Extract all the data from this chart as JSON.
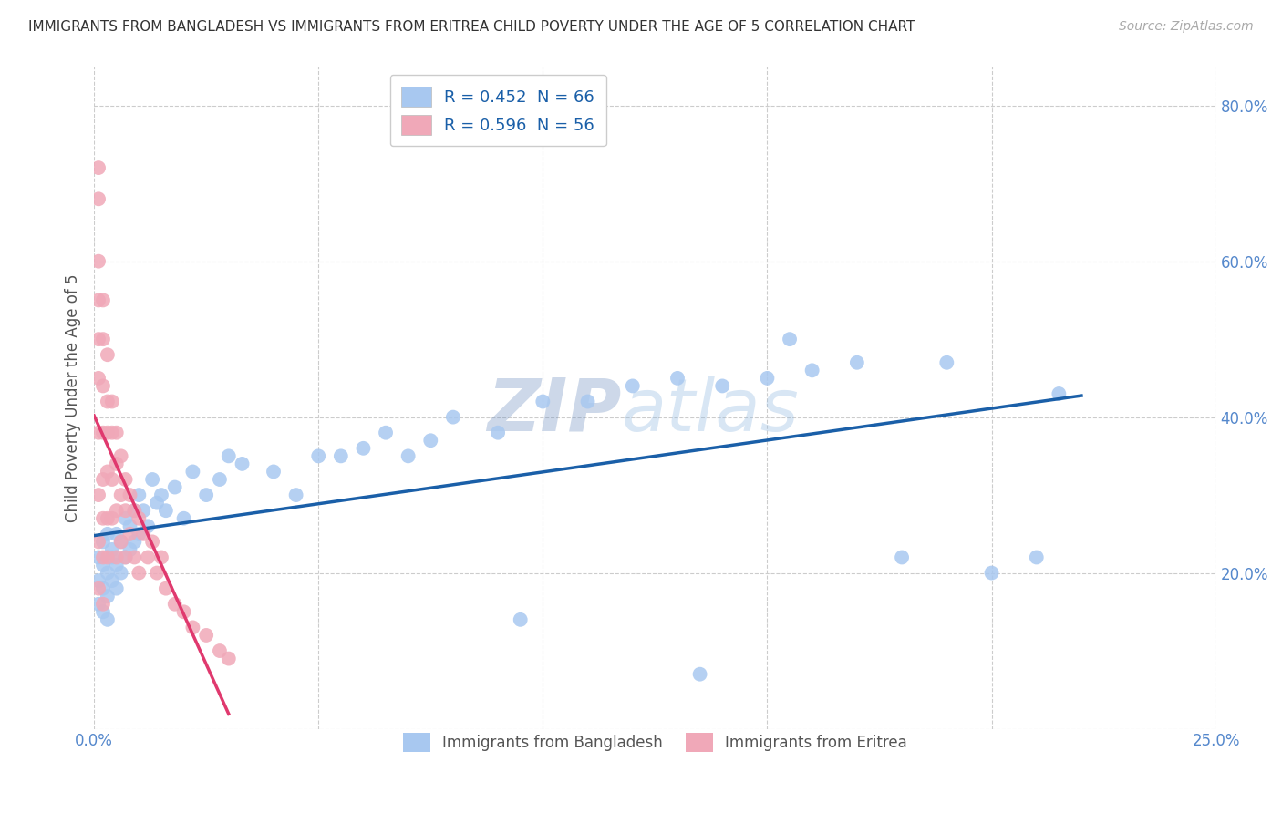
{
  "title": "IMMIGRANTS FROM BANGLADESH VS IMMIGRANTS FROM ERITREA CHILD POVERTY UNDER THE AGE OF 5 CORRELATION CHART",
  "source": "Source: ZipAtlas.com",
  "ylabel": "Child Poverty Under the Age of 5",
  "xlim": [
    0.0,
    0.25
  ],
  "ylim": [
    0.0,
    0.85
  ],
  "xtick_positions": [
    0.0,
    0.05,
    0.1,
    0.15,
    0.2,
    0.25
  ],
  "xticklabels": [
    "0.0%",
    "",
    "",
    "",
    "",
    "25.0%"
  ],
  "ytick_positions": [
    0.0,
    0.2,
    0.4,
    0.6,
    0.8
  ],
  "yticklabels": [
    "",
    "20.0%",
    "40.0%",
    "60.0%",
    "80.0%"
  ],
  "bangladesh_color": "#a8c8f0",
  "eritrea_color": "#f0a8b8",
  "bangladesh_line_color": "#1a5fa8",
  "eritrea_line_color": "#e0396e",
  "R_bangladesh": 0.452,
  "N_bangladesh": 66,
  "R_eritrea": 0.596,
  "N_eritrea": 56,
  "legend_labels": [
    "Immigrants from Bangladesh",
    "Immigrants from Eritrea"
  ],
  "tick_color": "#5588cc",
  "ylabel_color": "#555555",
  "bangladesh_pts_x": [
    0.001,
    0.001,
    0.001,
    0.002,
    0.002,
    0.002,
    0.002,
    0.003,
    0.003,
    0.003,
    0.003,
    0.004,
    0.004,
    0.004,
    0.005,
    0.005,
    0.005,
    0.006,
    0.006,
    0.007,
    0.007,
    0.008,
    0.008,
    0.009,
    0.009,
    0.01,
    0.01,
    0.011,
    0.012,
    0.013,
    0.014,
    0.015,
    0.016,
    0.018,
    0.02,
    0.022,
    0.025,
    0.028,
    0.03,
    0.033,
    0.04,
    0.045,
    0.05,
    0.055,
    0.06,
    0.065,
    0.07,
    0.075,
    0.08,
    0.09,
    0.1,
    0.11,
    0.12,
    0.13,
    0.14,
    0.15,
    0.16,
    0.17,
    0.18,
    0.19,
    0.2,
    0.21,
    0.215,
    0.155,
    0.135,
    0.095
  ],
  "bangladesh_pts_y": [
    0.22,
    0.19,
    0.16,
    0.24,
    0.21,
    0.18,
    0.15,
    0.25,
    0.2,
    0.17,
    0.14,
    0.23,
    0.19,
    0.22,
    0.21,
    0.25,
    0.18,
    0.24,
    0.2,
    0.27,
    0.22,
    0.26,
    0.23,
    0.28,
    0.24,
    0.3,
    0.25,
    0.28,
    0.26,
    0.32,
    0.29,
    0.3,
    0.28,
    0.31,
    0.27,
    0.33,
    0.3,
    0.32,
    0.35,
    0.34,
    0.33,
    0.3,
    0.35,
    0.35,
    0.36,
    0.38,
    0.35,
    0.37,
    0.4,
    0.38,
    0.42,
    0.42,
    0.44,
    0.45,
    0.44,
    0.45,
    0.46,
    0.47,
    0.22,
    0.47,
    0.2,
    0.22,
    0.43,
    0.5,
    0.07,
    0.14
  ],
  "eritrea_pts_x": [
    0.001,
    0.001,
    0.001,
    0.001,
    0.001,
    0.001,
    0.001,
    0.001,
    0.001,
    0.001,
    0.002,
    0.002,
    0.002,
    0.002,
    0.002,
    0.002,
    0.002,
    0.002,
    0.003,
    0.003,
    0.003,
    0.003,
    0.003,
    0.003,
    0.004,
    0.004,
    0.004,
    0.004,
    0.005,
    0.005,
    0.005,
    0.005,
    0.006,
    0.006,
    0.006,
    0.007,
    0.007,
    0.007,
    0.008,
    0.008,
    0.009,
    0.009,
    0.01,
    0.01,
    0.011,
    0.012,
    0.013,
    0.014,
    0.015,
    0.016,
    0.018,
    0.02,
    0.022,
    0.025,
    0.028,
    0.03
  ],
  "eritrea_pts_y": [
    0.72,
    0.68,
    0.6,
    0.55,
    0.5,
    0.45,
    0.38,
    0.3,
    0.24,
    0.18,
    0.55,
    0.5,
    0.44,
    0.38,
    0.32,
    0.27,
    0.22,
    0.16,
    0.48,
    0.42,
    0.38,
    0.33,
    0.27,
    0.22,
    0.42,
    0.38,
    0.32,
    0.27,
    0.38,
    0.34,
    0.28,
    0.22,
    0.35,
    0.3,
    0.24,
    0.32,
    0.28,
    0.22,
    0.3,
    0.25,
    0.28,
    0.22,
    0.27,
    0.2,
    0.25,
    0.22,
    0.24,
    0.2,
    0.22,
    0.18,
    0.16,
    0.15,
    0.13,
    0.12,
    0.1,
    0.09
  ],
  "watermark_zip_color": "#7090c0",
  "watermark_atlas_color": "#90b8e0"
}
